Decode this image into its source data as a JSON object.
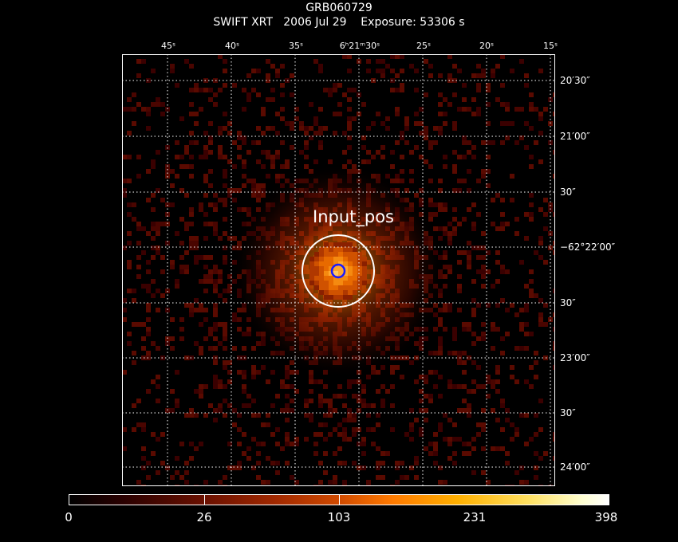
{
  "header": {
    "title": "GRB060729",
    "subtitle": "SWIFT XRT   2006 Jul 29    Exposure: 53306 s"
  },
  "axes": {
    "ra_labels": [
      {
        "text": "45ˢ"
      },
      {
        "text": "40ˢ"
      },
      {
        "text": "35ˢ"
      },
      {
        "text": "6ʰ21ᵐ30ˢ"
      },
      {
        "text": "25ˢ"
      },
      {
        "text": "20ˢ"
      },
      {
        "text": "15ˢ"
      }
    ],
    "dec_labels": [
      {
        "text": "20′30″"
      },
      {
        "text": "21′00″"
      },
      {
        "text": "30″"
      },
      {
        "text": "−62°22′00″"
      },
      {
        "text": "30″"
      },
      {
        "text": "23′00″"
      },
      {
        "text": "30″"
      },
      {
        "text": "24′00″"
      }
    ]
  },
  "source": {
    "label": "Input_pos"
  },
  "colorbar": {
    "labels": [
      "0",
      "26",
      "103",
      "231",
      "398"
    ]
  },
  "colors": {
    "background": "#000000",
    "grid": "#ffffff",
    "marker_inner": "#1a1aff",
    "marker_outer": "#ffffff"
  }
}
